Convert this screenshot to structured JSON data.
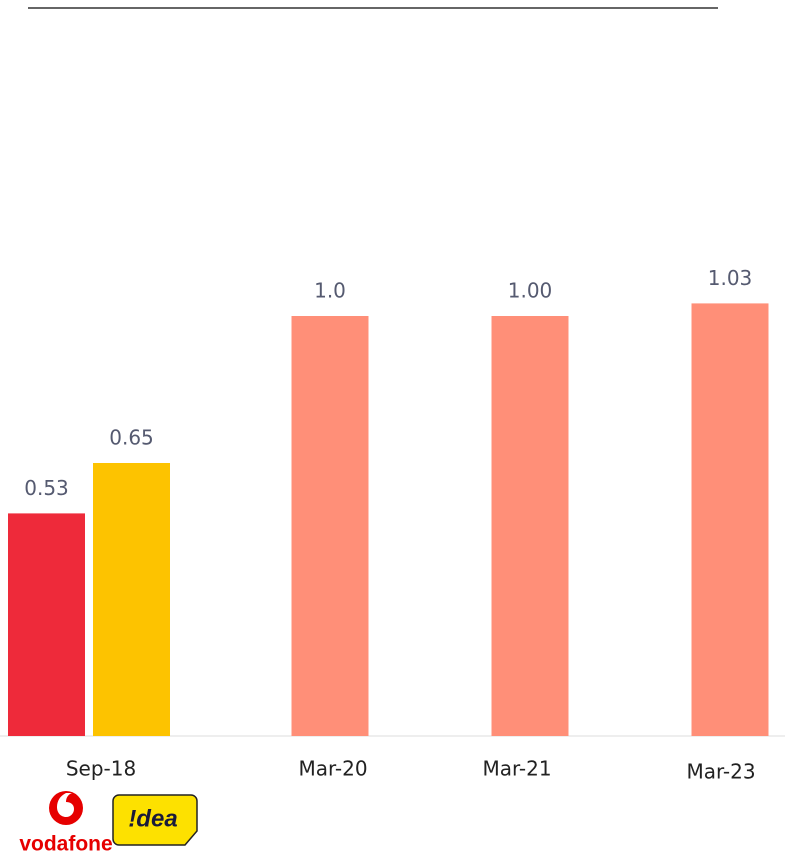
{
  "chart_data": {
    "type": "bar",
    "categories": [
      "Sep-18",
      "Mar-20",
      "Mar-21",
      "Mar-23"
    ],
    "series": [
      {
        "name": "vodafone",
        "color": "#ee2a3a",
        "values": [
          0.53,
          null,
          null,
          null
        ]
      },
      {
        "name": "!dea",
        "color": "#fdc300",
        "values": [
          0.65,
          null,
          null,
          null
        ]
      },
      {
        "color": "#ff8f78",
        "values": [
          null,
          1.0,
          1.0,
          1.03
        ],
        "value_labels": [
          null,
          "1.0",
          "1.00",
          "1.03"
        ]
      }
    ]
  }
}
